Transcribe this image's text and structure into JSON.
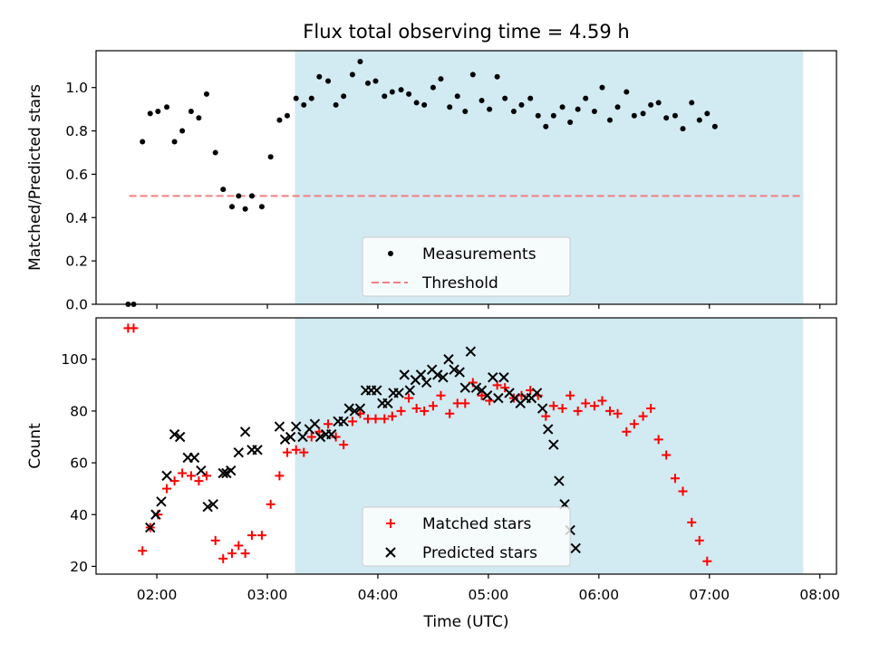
{
  "chart_data": {
    "title": "Flux total observing time = 4.59 h",
    "xlabel": "Time (UTC)",
    "x_ticks": [
      {
        "h": 2,
        "label": "02:00"
      },
      {
        "h": 3,
        "label": "03:00"
      },
      {
        "h": 4,
        "label": "04:00"
      },
      {
        "h": 5,
        "label": "05:00"
      },
      {
        "h": 6,
        "label": "06:00"
      },
      {
        "h": 7,
        "label": "07:00"
      },
      {
        "h": 8,
        "label": "08:00"
      }
    ],
    "xlim": [
      1.45,
      8.15
    ],
    "shaded_span": [
      3.25,
      7.85
    ],
    "shade_color": "#add8e6",
    "panels": [
      {
        "type": "scatter",
        "ylabel": "Matched/Predicted stars",
        "ylim": [
          0,
          1.17
        ],
        "y_ticks": [
          "0.0",
          "0.2",
          "0.4",
          "0.6",
          "0.8",
          "1.0"
        ],
        "y_tick_values": [
          0,
          0.2,
          0.4,
          0.6,
          0.8,
          1.0
        ],
        "threshold": {
          "name": "Threshold",
          "value": 0.5,
          "x_range": [
            1.75,
            7.85
          ],
          "color": "#f08080"
        },
        "legend": {
          "location": "lower center",
          "entries": [
            "Measurements",
            "Threshold"
          ]
        },
        "series": [
          {
            "name": "Measurements",
            "marker": "dot",
            "color": "#000000",
            "points": [
              [
                1.74,
                0.0
              ],
              [
                1.79,
                0.0
              ],
              [
                1.87,
                0.75
              ],
              [
                1.94,
                0.88
              ],
              [
                2.01,
                0.89
              ],
              [
                2.09,
                0.91
              ],
              [
                2.16,
                0.75
              ],
              [
                2.23,
                0.8
              ],
              [
                2.31,
                0.89
              ],
              [
                2.38,
                0.86
              ],
              [
                2.45,
                0.97
              ],
              [
                2.53,
                0.7
              ],
              [
                2.6,
                0.53
              ],
              [
                2.68,
                0.45
              ],
              [
                2.74,
                0.5
              ],
              [
                2.8,
                0.44
              ],
              [
                2.86,
                0.5
              ],
              [
                2.95,
                0.45
              ],
              [
                3.03,
                0.68
              ],
              [
                3.11,
                0.85
              ],
              [
                3.18,
                0.87
              ],
              [
                3.26,
                0.95
              ],
              [
                3.33,
                0.92
              ],
              [
                3.4,
                0.95
              ],
              [
                3.47,
                1.05
              ],
              [
                3.55,
                1.03
              ],
              [
                3.62,
                0.92
              ],
              [
                3.69,
                0.96
              ],
              [
                3.77,
                1.06
              ],
              [
                3.84,
                1.12
              ],
              [
                3.91,
                1.02
              ],
              [
                3.98,
                1.03
              ],
              [
                4.06,
                0.96
              ],
              [
                4.13,
                0.98
              ],
              [
                4.21,
                0.99
              ],
              [
                4.28,
                0.97
              ],
              [
                4.35,
                0.93
              ],
              [
                4.42,
                0.92
              ],
              [
                4.5,
                1.0
              ],
              [
                4.57,
                1.04
              ],
              [
                4.65,
                0.91
              ],
              [
                4.72,
                0.96
              ],
              [
                4.79,
                0.89
              ],
              [
                4.86,
                1.06
              ],
              [
                4.94,
                0.94
              ],
              [
                5.01,
                0.9
              ],
              [
                5.08,
                1.05
              ],
              [
                5.15,
                0.95
              ],
              [
                5.23,
                0.89
              ],
              [
                5.3,
                0.92
              ],
              [
                5.38,
                0.95
              ],
              [
                5.45,
                0.87
              ],
              [
                5.52,
                0.82
              ],
              [
                5.59,
                0.87
              ],
              [
                5.67,
                0.91
              ],
              [
                5.74,
                0.84
              ],
              [
                5.81,
                0.9
              ],
              [
                5.88,
                0.95
              ],
              [
                5.96,
                0.89
              ],
              [
                6.03,
                1.0
              ],
              [
                6.1,
                0.85
              ],
              [
                6.17,
                0.91
              ],
              [
                6.25,
                0.98
              ],
              [
                6.32,
                0.87
              ],
              [
                6.4,
                0.88
              ],
              [
                6.47,
                0.92
              ],
              [
                6.54,
                0.93
              ],
              [
                6.61,
                0.86
              ],
              [
                6.69,
                0.87
              ],
              [
                6.76,
                0.81
              ],
              [
                6.84,
                0.93
              ],
              [
                6.91,
                0.85
              ],
              [
                6.98,
                0.88
              ],
              [
                7.05,
                0.82
              ]
            ]
          }
        ]
      },
      {
        "type": "scatter",
        "ylabel": "Count",
        "ylim": [
          17,
          116
        ],
        "y_ticks": [
          "20",
          "40",
          "60",
          "80",
          "100"
        ],
        "y_tick_values": [
          20,
          40,
          60,
          80,
          100
        ],
        "legend": {
          "location": "lower center",
          "entries": [
            "Matched stars",
            "Predicted stars"
          ]
        },
        "series": [
          {
            "name": "Matched stars",
            "marker": "plus",
            "color": "#ff0000",
            "points": [
              [
                1.74,
                112
              ],
              [
                1.79,
                112
              ],
              [
                1.87,
                26
              ],
              [
                1.94,
                35
              ],
              [
                2.01,
                40
              ],
              [
                2.09,
                50
              ],
              [
                2.16,
                53
              ],
              [
                2.23,
                56
              ],
              [
                2.31,
                55
              ],
              [
                2.38,
                53
              ],
              [
                2.45,
                55
              ],
              [
                2.53,
                30
              ],
              [
                2.6,
                23
              ],
              [
                2.68,
                25
              ],
              [
                2.74,
                28
              ],
              [
                2.8,
                25
              ],
              [
                2.86,
                32
              ],
              [
                2.95,
                32
              ],
              [
                3.03,
                44
              ],
              [
                3.11,
                55
              ],
              [
                3.18,
                64
              ],
              [
                3.26,
                65
              ],
              [
                3.33,
                64
              ],
              [
                3.4,
                70
              ],
              [
                3.47,
                72
              ],
              [
                3.55,
                75
              ],
              [
                3.62,
                70
              ],
              [
                3.69,
                67
              ],
              [
                3.77,
                76
              ],
              [
                3.84,
                79
              ],
              [
                3.91,
                77
              ],
              [
                3.98,
                77
              ],
              [
                4.06,
                77
              ],
              [
                4.13,
                78
              ],
              [
                4.21,
                80
              ],
              [
                4.28,
                85
              ],
              [
                4.35,
                81
              ],
              [
                4.42,
                80
              ],
              [
                4.5,
                82
              ],
              [
                4.57,
                86
              ],
              [
                4.65,
                79
              ],
              [
                4.72,
                83
              ],
              [
                4.79,
                83
              ],
              [
                4.86,
                91
              ],
              [
                4.94,
                86
              ],
              [
                5.01,
                84
              ],
              [
                5.08,
                90
              ],
              [
                5.15,
                89
              ],
              [
                5.23,
                85
              ],
              [
                5.3,
                86
              ],
              [
                5.38,
                88
              ],
              [
                5.45,
                86
              ],
              [
                5.52,
                78
              ],
              [
                5.59,
                82
              ],
              [
                5.67,
                81
              ],
              [
                5.74,
                86
              ],
              [
                5.81,
                80
              ],
              [
                5.88,
                83
              ],
              [
                5.96,
                82
              ],
              [
                6.03,
                84
              ],
              [
                6.1,
                80
              ],
              [
                6.17,
                79
              ],
              [
                6.25,
                72
              ],
              [
                6.32,
                75
              ],
              [
                6.4,
                78
              ],
              [
                6.47,
                81
              ],
              [
                6.54,
                69
              ],
              [
                6.61,
                63
              ],
              [
                6.69,
                54
              ],
              [
                6.76,
                49
              ],
              [
                6.84,
                37
              ],
              [
                6.91,
                30
              ],
              [
                6.98,
                22
              ]
            ]
          },
          {
            "name": "Predicted stars",
            "marker": "x",
            "color": "#000000",
            "points": [
              [
                1.94,
                35
              ],
              [
                1.99,
                40
              ],
              [
                2.04,
                45
              ],
              [
                2.09,
                55
              ],
              [
                2.16,
                71
              ],
              [
                2.21,
                70
              ],
              [
                2.28,
                62
              ],
              [
                2.34,
                62
              ],
              [
                2.4,
                57
              ],
              [
                2.46,
                43
              ],
              [
                2.51,
                44
              ],
              [
                2.6,
                56
              ],
              [
                2.63,
                56
              ],
              [
                2.67,
                57
              ],
              [
                2.74,
                64
              ],
              [
                2.8,
                72
              ],
              [
                2.86,
                65
              ],
              [
                2.91,
                65
              ],
              [
                3.11,
                74
              ],
              [
                3.16,
                69
              ],
              [
                3.21,
                70
              ],
              [
                3.26,
                74
              ],
              [
                3.32,
                70
              ],
              [
                3.38,
                73
              ],
              [
                3.43,
                75
              ],
              [
                3.48,
                70
              ],
              [
                3.53,
                71
              ],
              [
                3.58,
                71
              ],
              [
                3.64,
                76
              ],
              [
                3.69,
                76
              ],
              [
                3.74,
                81
              ],
              [
                3.79,
                80
              ],
              [
                3.84,
                81
              ],
              [
                3.89,
                88
              ],
              [
                3.94,
                88
              ],
              [
                3.99,
                88
              ],
              [
                4.04,
                83
              ],
              [
                4.09,
                83
              ],
              [
                4.14,
                87
              ],
              [
                4.19,
                87
              ],
              [
                4.24,
                94
              ],
              [
                4.29,
                88
              ],
              [
                4.34,
                92
              ],
              [
                4.39,
                94
              ],
              [
                4.44,
                91
              ],
              [
                4.49,
                96
              ],
              [
                4.54,
                94
              ],
              [
                4.59,
                93
              ],
              [
                4.64,
                100
              ],
              [
                4.69,
                96
              ],
              [
                4.74,
                95
              ],
              [
                4.79,
                89
              ],
              [
                4.84,
                103
              ],
              [
                4.89,
                89
              ],
              [
                4.94,
                88
              ],
              [
                4.99,
                86
              ],
              [
                5.04,
                93
              ],
              [
                5.09,
                85
              ],
              [
                5.14,
                93
              ],
              [
                5.19,
                87
              ],
              [
                5.24,
                85
              ],
              [
                5.29,
                83
              ],
              [
                5.34,
                85
              ],
              [
                5.39,
                85
              ],
              [
                5.44,
                87
              ],
              [
                5.49,
                81
              ],
              [
                5.54,
                73
              ],
              [
                5.59,
                67
              ],
              [
                5.64,
                53
              ],
              [
                5.69,
                44
              ],
              [
                5.74,
                34
              ],
              [
                5.79,
                27
              ]
            ]
          }
        ]
      }
    ]
  }
}
